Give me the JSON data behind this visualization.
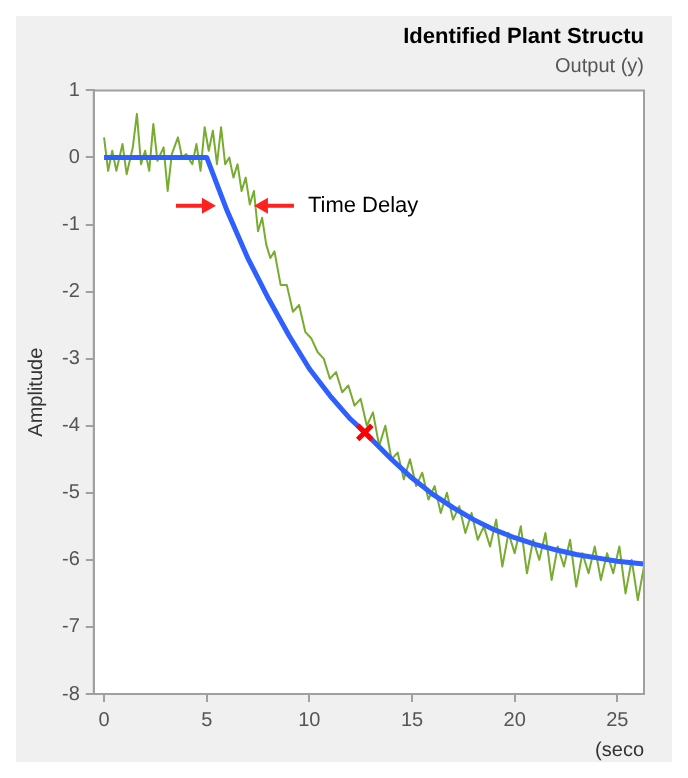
{
  "chart_data": {
    "type": "line",
    "title": "Identified Plant Structu",
    "subtitle": "Output (y)",
    "xlabel": "(seco",
    "ylabel": "Amplitude",
    "annotations": [
      {
        "text": "Time Delay",
        "x": 7.3,
        "y": -0.72
      }
    ],
    "xlim": [
      -0.5,
      26.3
    ],
    "xticks": [
      0,
      5,
      10,
      15,
      20,
      25
    ],
    "ylim": [
      -8,
      1
    ],
    "yticks": [
      1,
      0,
      -1,
      -2,
      -3,
      -4,
      -5,
      -6,
      -7,
      -8
    ],
    "grid": false,
    "legend": false,
    "series": [
      {
        "type": "line",
        "color": "#77ac30",
        "marker": "none",
        "x": [
          0,
          0.2,
          0.4,
          0.6,
          0.9,
          1.1,
          1.4,
          1.6,
          1.8,
          2.0,
          2.2,
          2.4,
          2.6,
          2.9,
          3.1,
          3.3,
          3.6,
          3.8,
          4.0,
          4.3,
          4.5,
          4.7,
          4.9,
          5.1,
          5.3,
          5.5,
          5.7,
          5.9,
          6.1,
          6.3,
          6.5,
          6.7,
          6.9,
          7.1,
          7.3,
          7.5,
          7.7,
          7.9,
          8.1,
          8.3,
          8.6,
          8.9,
          9.2,
          9.5,
          9.8,
          10.1,
          10.4,
          10.7,
          11.0,
          11.3,
          11.6,
          11.9,
          12.2,
          12.5,
          12.8,
          13.1,
          13.4,
          13.7,
          14.0,
          14.3,
          14.6,
          14.9,
          15.2,
          15.5,
          15.8,
          16.1,
          16.4,
          16.7,
          17.0,
          17.3,
          17.6,
          17.9,
          18.2,
          18.5,
          18.8,
          19.1,
          19.4,
          19.7,
          20.0,
          20.3,
          20.6,
          20.9,
          21.2,
          21.5,
          21.8,
          22.1,
          22.4,
          22.7,
          23.0,
          23.3,
          23.6,
          23.9,
          24.2,
          24.5,
          24.8,
          25.1,
          25.4,
          25.7,
          26.0,
          26.3
        ],
        "values": [
          0.3,
          -0.2,
          0.1,
          -0.2,
          0.2,
          -0.25,
          0.15,
          0.65,
          -0.1,
          0.1,
          -0.2,
          0.5,
          -0.05,
          0.15,
          -0.5,
          0.05,
          0.3,
          0.0,
          0.05,
          -0.1,
          0.2,
          -0.2,
          0.45,
          0.1,
          0.4,
          -0.1,
          0.45,
          -0.1,
          0.0,
          -0.3,
          -0.1,
          -0.5,
          -0.3,
          -0.7,
          -0.5,
          -1.1,
          -0.9,
          -1.3,
          -1.5,
          -1.4,
          -1.9,
          -1.9,
          -2.3,
          -2.2,
          -2.6,
          -2.7,
          -2.9,
          -3.0,
          -3.3,
          -3.2,
          -3.5,
          -3.4,
          -3.7,
          -3.6,
          -4.0,
          -3.8,
          -4.3,
          -4.0,
          -4.5,
          -4.4,
          -4.8,
          -4.5,
          -4.9,
          -4.7,
          -5.1,
          -4.9,
          -5.3,
          -5.0,
          -5.4,
          -5.2,
          -5.6,
          -5.3,
          -5.7,
          -5.5,
          -5.8,
          -5.4,
          -6.1,
          -5.6,
          -5.9,
          -5.5,
          -6.2,
          -5.7,
          -6.0,
          -5.6,
          -6.3,
          -5.8,
          -6.1,
          -5.7,
          -6.4,
          -5.9,
          -6.2,
          -5.8,
          -6.3,
          -5.9,
          -6.2,
          -5.8,
          -6.5,
          -6.0,
          -6.6,
          -6.1
        ]
      },
      {
        "type": "line",
        "color": "#2e5fff",
        "marker": "none",
        "x": [
          0,
          5,
          5.5,
          6,
          7,
          8,
          9,
          10,
          11,
          12,
          12.7,
          14,
          15,
          16,
          17,
          18,
          19,
          20,
          21,
          22,
          23,
          24,
          25,
          26.3
        ],
        "values": [
          0,
          0,
          -0.4,
          -0.8,
          -1.5,
          -2.1,
          -2.65,
          -3.15,
          -3.55,
          -3.9,
          -4.1,
          -4.5,
          -4.78,
          -5.02,
          -5.22,
          -5.4,
          -5.55,
          -5.67,
          -5.77,
          -5.85,
          -5.92,
          -5.97,
          -6.02,
          -6.06
        ]
      },
      {
        "type": "scatter",
        "color": "#ff0000",
        "marker": "cross",
        "x": [
          12.7
        ],
        "values": [
          -4.1
        ]
      }
    ]
  }
}
